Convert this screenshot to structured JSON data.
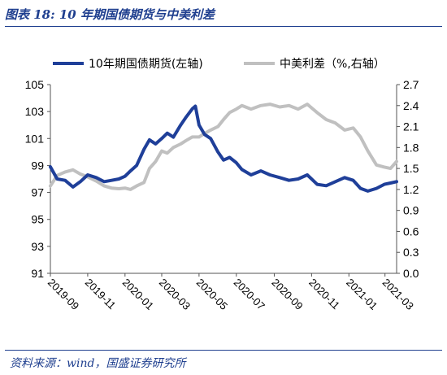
{
  "header": {
    "title": "图表 18:  10 年期国债期货与中美利差"
  },
  "footer": {
    "source": "资料来源：wind，国盛证券研究所"
  },
  "colors": {
    "series1": "#1f3f99",
    "series2": "#c0c0c0",
    "accent": "#1f3f8f"
  },
  "chart_data": {
    "type": "line",
    "x_axis_labels": [
      "2019-09",
      "2019-11",
      "2020-01",
      "2020-03",
      "2020-05",
      "2020-07",
      "2020-09",
      "2020-11",
      "2021-01",
      "2021-03"
    ],
    "x_range": [
      "2019-09-01",
      "2021-03-20"
    ],
    "y_left": {
      "ylim": [
        91,
        105
      ],
      "ticks": [
        91,
        93,
        95,
        97,
        99,
        101,
        103,
        105
      ],
      "tick_labels": [
        "91",
        "93",
        "95",
        "97",
        "99",
        "101",
        "103",
        "105"
      ]
    },
    "y_right": {
      "ylim": [
        0.0,
        2.7
      ],
      "ticks": [
        0.0,
        0.3,
        0.6,
        0.9,
        1.2,
        1.5,
        1.8,
        2.1,
        2.4,
        2.7
      ],
      "tick_labels": [
        "0.0",
        "0.3",
        "0.6",
        "0.9",
        "1.2",
        "1.5",
        "1.8",
        "2.1",
        "2.4",
        "2.7"
      ]
    },
    "legend_placement": "top",
    "grid": false,
    "series": [
      {
        "name": "10年期国债期货(左轴)",
        "axis": "left",
        "points": [
          [
            "2019-09-01",
            98.9
          ],
          [
            "2019-09-12",
            98.0
          ],
          [
            "2019-09-25",
            97.9
          ],
          [
            "2019-10-08",
            97.4
          ],
          [
            "2019-10-20",
            97.8
          ],
          [
            "2019-11-01",
            98.3
          ],
          [
            "2019-11-15",
            98.1
          ],
          [
            "2019-11-28",
            97.8
          ],
          [
            "2019-12-10",
            97.9
          ],
          [
            "2019-12-22",
            98.0
          ],
          [
            "2020-01-01",
            98.2
          ],
          [
            "2020-01-10",
            98.6
          ],
          [
            "2020-01-20",
            99.0
          ],
          [
            "2020-02-01",
            100.2
          ],
          [
            "2020-02-10",
            100.9
          ],
          [
            "2020-02-20",
            100.6
          ],
          [
            "2020-03-01",
            101.0
          ],
          [
            "2020-03-10",
            101.4
          ],
          [
            "2020-03-20",
            101.1
          ],
          [
            "2020-04-01",
            102.0
          ],
          [
            "2020-04-10",
            102.6
          ],
          [
            "2020-04-20",
            103.2
          ],
          [
            "2020-04-25",
            103.4
          ],
          [
            "2020-05-01",
            102.0
          ],
          [
            "2020-05-10",
            101.3
          ],
          [
            "2020-05-20",
            101.0
          ],
          [
            "2020-06-01",
            100.0
          ],
          [
            "2020-06-10",
            99.4
          ],
          [
            "2020-06-20",
            99.6
          ],
          [
            "2020-07-01",
            99.2
          ],
          [
            "2020-07-10",
            98.7
          ],
          [
            "2020-07-25",
            98.3
          ],
          [
            "2020-08-10",
            98.6
          ],
          [
            "2020-08-25",
            98.3
          ],
          [
            "2020-09-10",
            98.1
          ],
          [
            "2020-09-25",
            97.9
          ],
          [
            "2020-10-10",
            98.0
          ],
          [
            "2020-10-25",
            98.3
          ],
          [
            "2020-11-10",
            97.6
          ],
          [
            "2020-11-25",
            97.5
          ],
          [
            "2020-12-10",
            97.8
          ],
          [
            "2020-12-25",
            98.1
          ],
          [
            "2021-01-08",
            97.9
          ],
          [
            "2021-01-20",
            97.3
          ],
          [
            "2021-02-01",
            97.1
          ],
          [
            "2021-02-15",
            97.3
          ],
          [
            "2021-02-28",
            97.6
          ],
          [
            "2021-03-10",
            97.7
          ],
          [
            "2021-03-20",
            97.8
          ]
        ]
      },
      {
        "name": "中美利差（%,右轴）",
        "axis": "right",
        "points": [
          [
            "2019-09-01",
            1.25
          ],
          [
            "2019-09-12",
            1.4
          ],
          [
            "2019-09-25",
            1.45
          ],
          [
            "2019-10-08",
            1.48
          ],
          [
            "2019-10-20",
            1.42
          ],
          [
            "2019-11-01",
            1.38
          ],
          [
            "2019-11-15",
            1.32
          ],
          [
            "2019-11-28",
            1.25
          ],
          [
            "2019-12-10",
            1.22
          ],
          [
            "2019-12-22",
            1.21
          ],
          [
            "2020-01-01",
            1.22
          ],
          [
            "2020-01-10",
            1.2
          ],
          [
            "2020-01-20",
            1.25
          ],
          [
            "2020-02-01",
            1.3
          ],
          [
            "2020-02-10",
            1.5
          ],
          [
            "2020-02-20",
            1.6
          ],
          [
            "2020-03-01",
            1.75
          ],
          [
            "2020-03-10",
            1.72
          ],
          [
            "2020-03-20",
            1.8
          ],
          [
            "2020-04-01",
            1.85
          ],
          [
            "2020-04-10",
            1.9
          ],
          [
            "2020-04-20",
            1.95
          ],
          [
            "2020-05-01",
            1.95
          ],
          [
            "2020-05-10",
            2.0
          ],
          [
            "2020-05-20",
            2.05
          ],
          [
            "2020-06-01",
            2.1
          ],
          [
            "2020-06-10",
            2.2
          ],
          [
            "2020-06-20",
            2.3
          ],
          [
            "2020-07-01",
            2.35
          ],
          [
            "2020-07-10",
            2.4
          ],
          [
            "2020-07-25",
            2.35
          ],
          [
            "2020-08-10",
            2.4
          ],
          [
            "2020-08-25",
            2.42
          ],
          [
            "2020-09-10",
            2.38
          ],
          [
            "2020-09-25",
            2.4
          ],
          [
            "2020-10-10",
            2.35
          ],
          [
            "2020-10-25",
            2.42
          ],
          [
            "2020-11-10",
            2.3
          ],
          [
            "2020-11-25",
            2.2
          ],
          [
            "2020-12-10",
            2.15
          ],
          [
            "2020-12-25",
            2.05
          ],
          [
            "2021-01-08",
            2.08
          ],
          [
            "2021-01-20",
            1.95
          ],
          [
            "2021-02-01",
            1.75
          ],
          [
            "2021-02-15",
            1.55
          ],
          [
            "2021-02-28",
            1.52
          ],
          [
            "2021-03-10",
            1.5
          ],
          [
            "2021-03-20",
            1.6
          ]
        ]
      }
    ]
  }
}
